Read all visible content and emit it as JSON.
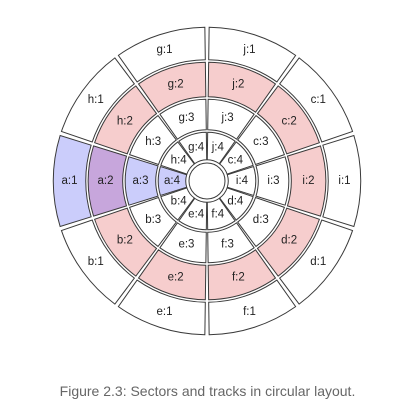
{
  "figure": {
    "caption": "Figure 2.3: Sectors and tracks in circular layout."
  },
  "colors": {
    "pink": "#f6cdcd",
    "blue": "#cbcdfb",
    "purple": "#c7a6dc",
    "white": "#ffffff",
    "stroke": "#3a3a3a"
  },
  "tracks": [
    {
      "number": 1,
      "cells": [
        {
          "label": "a:1",
          "fill": "blue"
        },
        {
          "label": "b:1",
          "fill": "white"
        },
        {
          "label": "e:1",
          "fill": "white"
        },
        {
          "label": "f:1",
          "fill": "white"
        },
        {
          "label": "d:1",
          "fill": "white"
        },
        {
          "label": "i:1",
          "fill": "white"
        },
        {
          "label": "c:1",
          "fill": "white"
        },
        {
          "label": "j:1",
          "fill": "white"
        },
        {
          "label": "g:1",
          "fill": "white"
        },
        {
          "label": "h:1",
          "fill": "white"
        }
      ]
    },
    {
      "number": 2,
      "cells": [
        {
          "label": "a:2",
          "fill": "purple"
        },
        {
          "label": "b:2",
          "fill": "pink"
        },
        {
          "label": "e:2",
          "fill": "pink"
        },
        {
          "label": "f:2",
          "fill": "pink"
        },
        {
          "label": "d:2",
          "fill": "pink"
        },
        {
          "label": "i:2",
          "fill": "pink"
        },
        {
          "label": "c:2",
          "fill": "pink"
        },
        {
          "label": "j:2",
          "fill": "pink"
        },
        {
          "label": "g:2",
          "fill": "pink"
        },
        {
          "label": "h:2",
          "fill": "pink"
        }
      ]
    },
    {
      "number": 3,
      "cells": [
        {
          "label": "a:3",
          "fill": "blue"
        },
        {
          "label": "b:3",
          "fill": "white"
        },
        {
          "label": "e:3",
          "fill": "white"
        },
        {
          "label": "f:3",
          "fill": "white"
        },
        {
          "label": "d:3",
          "fill": "white"
        },
        {
          "label": "i:3",
          "fill": "white"
        },
        {
          "label": "c:3",
          "fill": "white"
        },
        {
          "label": "j:3",
          "fill": "white"
        },
        {
          "label": "g:3",
          "fill": "white"
        },
        {
          "label": "h:3",
          "fill": "white"
        }
      ]
    },
    {
      "number": 4,
      "cells": [
        {
          "label": "a:4",
          "fill": "blue"
        },
        {
          "label": "b:4",
          "fill": "white"
        },
        {
          "label": "e:4",
          "fill": "white"
        },
        {
          "label": "f:4",
          "fill": "white"
        },
        {
          "label": "d:4",
          "fill": "white"
        },
        {
          "label": "i:4",
          "fill": "white"
        },
        {
          "label": "c:4",
          "fill": "white"
        },
        {
          "label": "j:4",
          "fill": "white"
        },
        {
          "label": "g:4",
          "fill": "white"
        },
        {
          "label": "h:4",
          "fill": "white"
        }
      ]
    }
  ]
}
